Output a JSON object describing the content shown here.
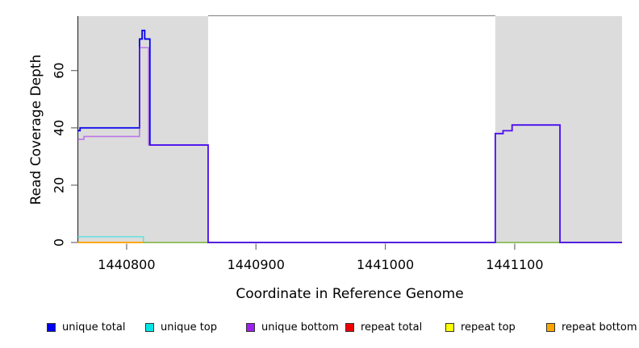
{
  "chart_data": {
    "type": "line",
    "subtype": "step-coverage",
    "title": "",
    "xlabel": "Coordinate in Reference Genome",
    "ylabel": "Read Coverage Depth",
    "xlim": [
      1440762,
      1441183
    ],
    "ylim": [
      0,
      79
    ],
    "xticks": [
      1440800,
      1440900,
      1441000,
      1441100
    ],
    "yticks": [
      0,
      20,
      40,
      60
    ],
    "grid": false,
    "legend_position": "bottom",
    "plot_background": "#ffffff",
    "repeat_region_color": "#dcdcdc",
    "repeat_regions": [
      [
        1440762,
        1440863
      ],
      [
        1441085,
        1441183
      ]
    ],
    "axis_color": "#333333",
    "tick_color": "#777777",
    "border_color": "#909090",
    "draw_order": [
      3,
      4,
      5,
      1,
      0,
      2
    ],
    "series": [
      {
        "name": "unique total",
        "color": "#0000ee",
        "opacity": 1,
        "width": 1.8,
        "points": [
          [
            1440762,
            39
          ],
          [
            1440764,
            39
          ],
          [
            1440764,
            40
          ],
          [
            1440810,
            40
          ],
          [
            1440810,
            71
          ],
          [
            1440812,
            71
          ],
          [
            1440812,
            74
          ],
          [
            1440814,
            74
          ],
          [
            1440814,
            71
          ],
          [
            1440818,
            71
          ],
          [
            1440818,
            34
          ],
          [
            1440863,
            34
          ],
          [
            1440863,
            0
          ],
          [
            1441085,
            0
          ],
          [
            1441085,
            38
          ],
          [
            1441091,
            38
          ],
          [
            1441091,
            39
          ],
          [
            1441098,
            39
          ],
          [
            1441098,
            41
          ],
          [
            1441135,
            41
          ],
          [
            1441135,
            0
          ],
          [
            1441183,
            0
          ]
        ]
      },
      {
        "name": "unique top",
        "color": "#00e6e6",
        "opacity": 0.55,
        "width": 1.6,
        "points": [
          [
            1440762,
            2
          ],
          [
            1440813,
            2
          ],
          [
            1440813,
            0
          ],
          [
            1441183,
            0
          ]
        ]
      },
      {
        "name": "unique bottom",
        "color": "#a020f0",
        "opacity": 0.55,
        "width": 1.6,
        "points": [
          [
            1440762,
            36
          ],
          [
            1440767,
            36
          ],
          [
            1440767,
            37
          ],
          [
            1440810,
            37
          ],
          [
            1440810,
            68
          ],
          [
            1440817,
            68
          ],
          [
            1440817,
            34
          ],
          [
            1440863,
            34
          ],
          [
            1440863,
            0
          ],
          [
            1441085,
            0
          ],
          [
            1441085,
            38
          ],
          [
            1441091,
            38
          ],
          [
            1441091,
            39
          ],
          [
            1441098,
            39
          ],
          [
            1441098,
            41
          ],
          [
            1441135,
            41
          ],
          [
            1441135,
            0
          ],
          [
            1441183,
            0
          ]
        ]
      },
      {
        "name": "repeat total",
        "color": "#ee0000",
        "opacity": 1,
        "width": 1.4,
        "points": [
          [
            1440762,
            0
          ],
          [
            1441183,
            0
          ]
        ]
      },
      {
        "name": "repeat top",
        "color": "#ffff00",
        "opacity": 1,
        "width": 1.4,
        "points": [
          [
            1440762,
            0
          ],
          [
            1441183,
            0
          ]
        ]
      },
      {
        "name": "repeat bottom",
        "color": "#ffa500",
        "opacity": 1,
        "width": 1.8,
        "points": [
          [
            1440762,
            0
          ],
          [
            1441183,
            0
          ]
        ]
      }
    ]
  }
}
